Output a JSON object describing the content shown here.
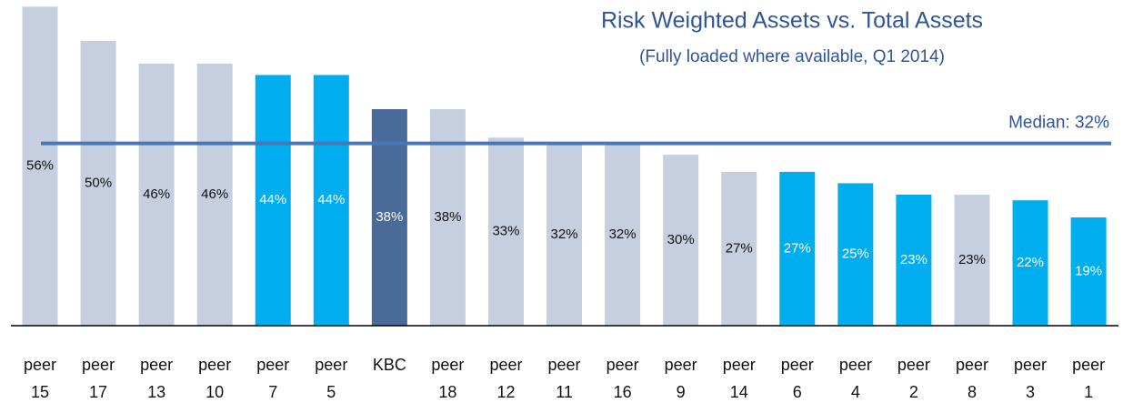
{
  "chart_data": {
    "type": "bar",
    "title": "Risk Weighted Assets vs. Total Assets",
    "subtitle": "(Fully loaded where available, Q1 2014)",
    "categories": [
      "peer 15",
      "peer 17",
      "peer 13",
      "peer 10",
      "peer 7",
      "peer 5",
      "KBC",
      "peer 18",
      "peer 12",
      "peer 11",
      "peer 16",
      "peer 9",
      "peer 14",
      "peer 6",
      "peer 4",
      "peer 2",
      "peer 8",
      "peer 3",
      "peer 1"
    ],
    "values": [
      56,
      50,
      46,
      46,
      44,
      44,
      38,
      38,
      33,
      32,
      32,
      30,
      27,
      27,
      25,
      23,
      23,
      22,
      19
    ],
    "value_labels": [
      "56%",
      "50%",
      "46%",
      "46%",
      "44%",
      "44%",
      "38%",
      "38%",
      "33%",
      "32%",
      "32%",
      "30%",
      "27%",
      "27%",
      "25%",
      "23%",
      "23%",
      "22%",
      "19%"
    ],
    "colors": [
      "#c5cfe0",
      "#c5cfe0",
      "#c5cfe0",
      "#c5cfe0",
      "#00adef",
      "#00adef",
      "#4a6a9a",
      "#c5cfe0",
      "#c5cfe0",
      "#c5cfe0",
      "#c5cfe0",
      "#c5cfe0",
      "#c5cfe0",
      "#00adef",
      "#00adef",
      "#00adef",
      "#c5cfe0",
      "#00adef",
      "#00adef"
    ],
    "ylim": [
      0,
      57
    ],
    "median": {
      "value": 32,
      "label": "Median: 32%"
    },
    "median_color": "#4a78b4"
  }
}
